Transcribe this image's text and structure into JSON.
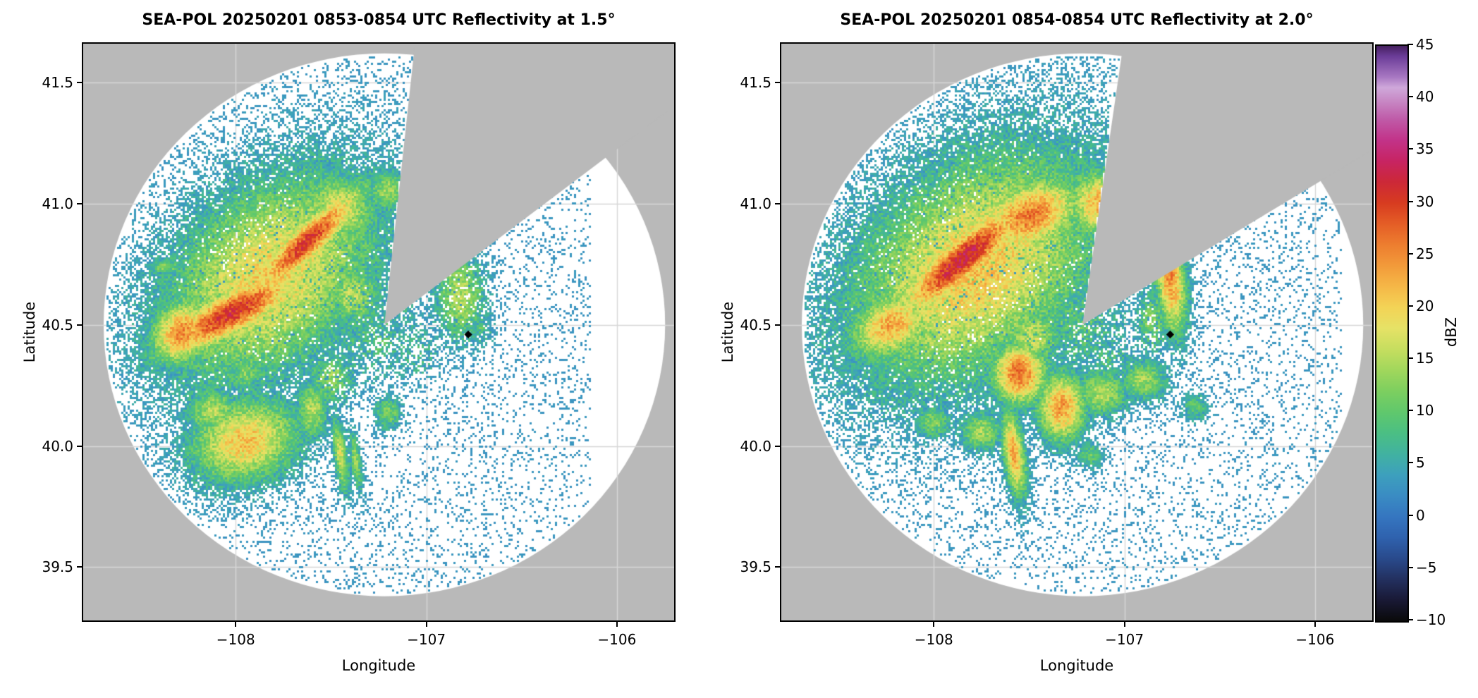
{
  "figure": {
    "background": "#ffffff"
  },
  "colors": {
    "outside_gray": "#b9b9b9",
    "grid": "#d7d7d7",
    "spine": "#000000",
    "marker": "#000000"
  },
  "colorbar": {
    "label": "dBZ",
    "vmin": -10,
    "vmax": 45,
    "tick_values": [
      45,
      40,
      35,
      30,
      25,
      20,
      15,
      10,
      5,
      0,
      -5,
      -10
    ],
    "tick_labels": [
      "45",
      "40",
      "35",
      "30",
      "25",
      "20",
      "15",
      "10",
      "5",
      "0",
      "−5",
      "−10"
    ],
    "stops": [
      [
        -10,
        "#0a0a0a"
      ],
      [
        -8,
        "#191935"
      ],
      [
        -6,
        "#23305f"
      ],
      [
        -4,
        "#294a8c"
      ],
      [
        -2,
        "#2f62ae"
      ],
      [
        0,
        "#3576c0"
      ],
      [
        2,
        "#3a8cc3"
      ],
      [
        4,
        "#3da0bd"
      ],
      [
        6,
        "#41b2a0"
      ],
      [
        8,
        "#4bbf83"
      ],
      [
        10,
        "#60c86c"
      ],
      [
        12,
        "#7dcf5f"
      ],
      [
        14,
        "#a1d75c"
      ],
      [
        16,
        "#c6de5f"
      ],
      [
        18,
        "#e6e266"
      ],
      [
        20,
        "#f3d356"
      ],
      [
        22,
        "#f5b747"
      ],
      [
        24,
        "#f29a3a"
      ],
      [
        26,
        "#ed7d2f"
      ],
      [
        28,
        "#e45d26"
      ],
      [
        30,
        "#d73b20"
      ],
      [
        32,
        "#cc2838"
      ],
      [
        34,
        "#c72463"
      ],
      [
        36,
        "#c23389"
      ],
      [
        38,
        "#bf5ba8"
      ],
      [
        40,
        "#c98fc9"
      ],
      [
        41,
        "#cfa8da"
      ],
      [
        42,
        "#a878c2"
      ],
      [
        44,
        "#6b3c98"
      ],
      [
        45,
        "#45205f"
      ]
    ]
  },
  "chart_data": [
    {
      "type": "heatmap",
      "kind": "radar-ppi-reflectivity",
      "title": "SEA-POL 20250201 0853-0854 UTC Reflectivity at 1.5°",
      "xlabel": "Longitude",
      "ylabel": "Latitude",
      "units": "dBZ",
      "xlim": [
        -108.8,
        -105.7
      ],
      "ylim": [
        39.28,
        41.66
      ],
      "xtick_values": [
        -108,
        -107,
        -106
      ],
      "xtick_labels": [
        "−108",
        "−107",
        "−106"
      ],
      "ytick_values": [
        39.5,
        40.0,
        40.5,
        41.0,
        41.5
      ],
      "ytick_labels": [
        "39.5",
        "40.0",
        "40.5",
        "41.0",
        "41.5"
      ],
      "radar_center": {
        "lon": -107.22,
        "lat": 40.5
      },
      "range_deg": 1.12,
      "blocked_sector_azimuth_deg": [
        6,
        52
      ],
      "site_marker": {
        "lon": -106.78,
        "lat": 40.46
      },
      "echoes": [
        {
          "lon": -107.82,
          "lat": 40.7,
          "peak": 20,
          "sx": 0.42,
          "sy": 0.26,
          "rot": 28,
          "sp": 0.1
        },
        {
          "lon": -107.63,
          "lat": 40.84,
          "peak": 30,
          "sx": 0.26,
          "sy": 0.06,
          "rot": 36
        },
        {
          "lon": -108.02,
          "lat": 40.55,
          "peak": 31,
          "sx": 0.28,
          "sy": 0.07,
          "rot": 22
        },
        {
          "lon": -108.28,
          "lat": 40.47,
          "peak": 25,
          "sx": 0.12,
          "sy": 0.09,
          "rot": 20
        },
        {
          "lon": -107.45,
          "lat": 40.98,
          "peak": 17,
          "sx": 0.14,
          "sy": 0.1,
          "rot": -15
        },
        {
          "lon": -107.2,
          "lat": 41.05,
          "peak": 14,
          "sx": 0.08,
          "sy": 0.06,
          "rot": 0
        },
        {
          "lon": -107.38,
          "lat": 40.62,
          "peak": 16,
          "sx": 0.1,
          "sy": 0.09,
          "rot": 0,
          "sp": 0.25
        },
        {
          "lon": -107.28,
          "lat": 40.45,
          "peak": 9,
          "sx": 0.17,
          "sy": 0.13,
          "rot": 0,
          "sp": 0.55
        },
        {
          "lon": -107.05,
          "lat": 40.38,
          "peak": 7,
          "sx": 0.1,
          "sy": 0.09,
          "rot": 0,
          "sp": 0.6
        },
        {
          "lon": -107.15,
          "lat": 40.6,
          "peak": 8,
          "sx": 0.08,
          "sy": 0.07,
          "rot": 0,
          "sp": 0.6
        },
        {
          "lon": -107.5,
          "lat": 40.28,
          "peak": 13,
          "sx": 0.09,
          "sy": 0.08,
          "rot": 0,
          "sp": 0.3
        },
        {
          "lon": -107.6,
          "lat": 40.15,
          "peak": 15,
          "sx": 0.06,
          "sy": 0.09,
          "rot": 0
        },
        {
          "lon": -106.82,
          "lat": 40.62,
          "peak": 15,
          "sx": 0.09,
          "sy": 0.13,
          "rot": 0,
          "sp": 0.2
        },
        {
          "lon": -106.72,
          "lat": 40.48,
          "peak": 9,
          "sx": 0.05,
          "sy": 0.05,
          "rot": 0,
          "sp": 0.5
        },
        {
          "lon": -107.95,
          "lat": 40.02,
          "peak": 21,
          "sx": 0.2,
          "sy": 0.12,
          "rot": 8
        },
        {
          "lon": -108.12,
          "lat": 40.14,
          "peak": 15,
          "sx": 0.1,
          "sy": 0.07,
          "rot": 0
        },
        {
          "lon": -107.45,
          "lat": 39.96,
          "peak": 17,
          "sx": 0.025,
          "sy": 0.11,
          "rot": 10
        },
        {
          "lon": -107.37,
          "lat": 39.94,
          "peak": 13,
          "sx": 0.02,
          "sy": 0.09,
          "rot": 10
        },
        {
          "lon": -107.2,
          "lat": 40.14,
          "peak": 12,
          "sx": 0.05,
          "sy": 0.05,
          "rot": 0
        },
        {
          "lon": -108.37,
          "lat": 40.74,
          "peak": 12,
          "sx": 0.07,
          "sy": 0.025,
          "rot": 0
        },
        {
          "lon": -107.95,
          "lat": 40.3,
          "peak": 12,
          "sx": 0.07,
          "sy": 0.05,
          "rot": 0
        }
      ]
    },
    {
      "type": "heatmap",
      "kind": "radar-ppi-reflectivity",
      "title": "SEA-POL 20250201 0854-0854 UTC Reflectivity at 2.0°",
      "xlabel": "Longitude",
      "ylabel": "Latitude",
      "units": "dBZ",
      "xlim": [
        -108.8,
        -105.7
      ],
      "ylim": [
        39.28,
        41.66
      ],
      "xtick_values": [
        -108,
        -107,
        -106
      ],
      "xtick_labels": [
        "−108",
        "−107",
        "−106"
      ],
      "ytick_values": [
        39.5,
        40.0,
        40.5,
        41.0,
        41.5
      ],
      "ytick_labels": [
        "39.5",
        "40.0",
        "40.5",
        "41.0",
        "41.5"
      ],
      "radar_center": {
        "lon": -107.22,
        "lat": 40.5
      },
      "range_deg": 1.12,
      "blocked_sector_azimuth_deg": [
        8,
        58
      ],
      "site_marker": {
        "lon": -106.76,
        "lat": 40.46
      },
      "echoes": [
        {
          "lon": -107.78,
          "lat": 40.74,
          "peak": 21,
          "sx": 0.48,
          "sy": 0.3,
          "rot": 25,
          "sp": 0.1
        },
        {
          "lon": -107.85,
          "lat": 40.77,
          "peak": 33,
          "sx": 0.28,
          "sy": 0.07,
          "rot": 33
        },
        {
          "lon": -107.5,
          "lat": 40.95,
          "peak": 26,
          "sx": 0.2,
          "sy": 0.1,
          "rot": 15
        },
        {
          "lon": -107.13,
          "lat": 41.0,
          "peak": 22,
          "sx": 0.12,
          "sy": 0.1,
          "rot": 0
        },
        {
          "lon": -108.22,
          "lat": 40.5,
          "peak": 23,
          "sx": 0.16,
          "sy": 0.09,
          "rot": 18
        },
        {
          "lon": -107.0,
          "lat": 40.88,
          "peak": 14,
          "sx": 0.06,
          "sy": 0.05,
          "rot": 0
        },
        {
          "lon": -107.25,
          "lat": 40.5,
          "peak": 10,
          "sx": 0.18,
          "sy": 0.14,
          "rot": 0,
          "sp": 0.5
        },
        {
          "lon": -107.08,
          "lat": 40.35,
          "peak": 8,
          "sx": 0.1,
          "sy": 0.09,
          "rot": 0,
          "sp": 0.55
        },
        {
          "lon": -107.48,
          "lat": 40.45,
          "peak": 17,
          "sx": 0.1,
          "sy": 0.08,
          "rot": 0,
          "sp": 0.2
        },
        {
          "lon": -107.55,
          "lat": 40.3,
          "peak": 27,
          "sx": 0.1,
          "sy": 0.09,
          "rot": 0
        },
        {
          "lon": -107.33,
          "lat": 40.16,
          "peak": 24,
          "sx": 0.09,
          "sy": 0.1,
          "rot": 0
        },
        {
          "lon": -107.12,
          "lat": 40.22,
          "peak": 15,
          "sx": 0.1,
          "sy": 0.07,
          "rot": 0
        },
        {
          "lon": -106.76,
          "lat": 40.7,
          "peak": 25,
          "sx": 0.055,
          "sy": 0.17,
          "rot": 8
        },
        {
          "lon": -106.85,
          "lat": 40.52,
          "peak": 13,
          "sx": 0.06,
          "sy": 0.09,
          "rot": 0,
          "sp": 0.3
        },
        {
          "lon": -106.9,
          "lat": 40.27,
          "peak": 14,
          "sx": 0.09,
          "sy": 0.06,
          "rot": 0
        },
        {
          "lon": -106.63,
          "lat": 40.16,
          "peak": 10,
          "sx": 0.05,
          "sy": 0.04,
          "rot": 0
        },
        {
          "lon": -107.58,
          "lat": 39.97,
          "peak": 23,
          "sx": 0.04,
          "sy": 0.13,
          "rot": 10
        },
        {
          "lon": -107.75,
          "lat": 40.06,
          "peak": 14,
          "sx": 0.08,
          "sy": 0.06,
          "rot": 0
        },
        {
          "lon": -108.0,
          "lat": 40.1,
          "peak": 12,
          "sx": 0.07,
          "sy": 0.05,
          "rot": 0
        },
        {
          "lon": -107.18,
          "lat": 39.96,
          "peak": 10,
          "sx": 0.05,
          "sy": 0.04,
          "rot": 0
        },
        {
          "lon": -108.42,
          "lat": 40.6,
          "peak": 10,
          "sx": 0.04,
          "sy": 0.03,
          "rot": 0
        }
      ]
    }
  ]
}
